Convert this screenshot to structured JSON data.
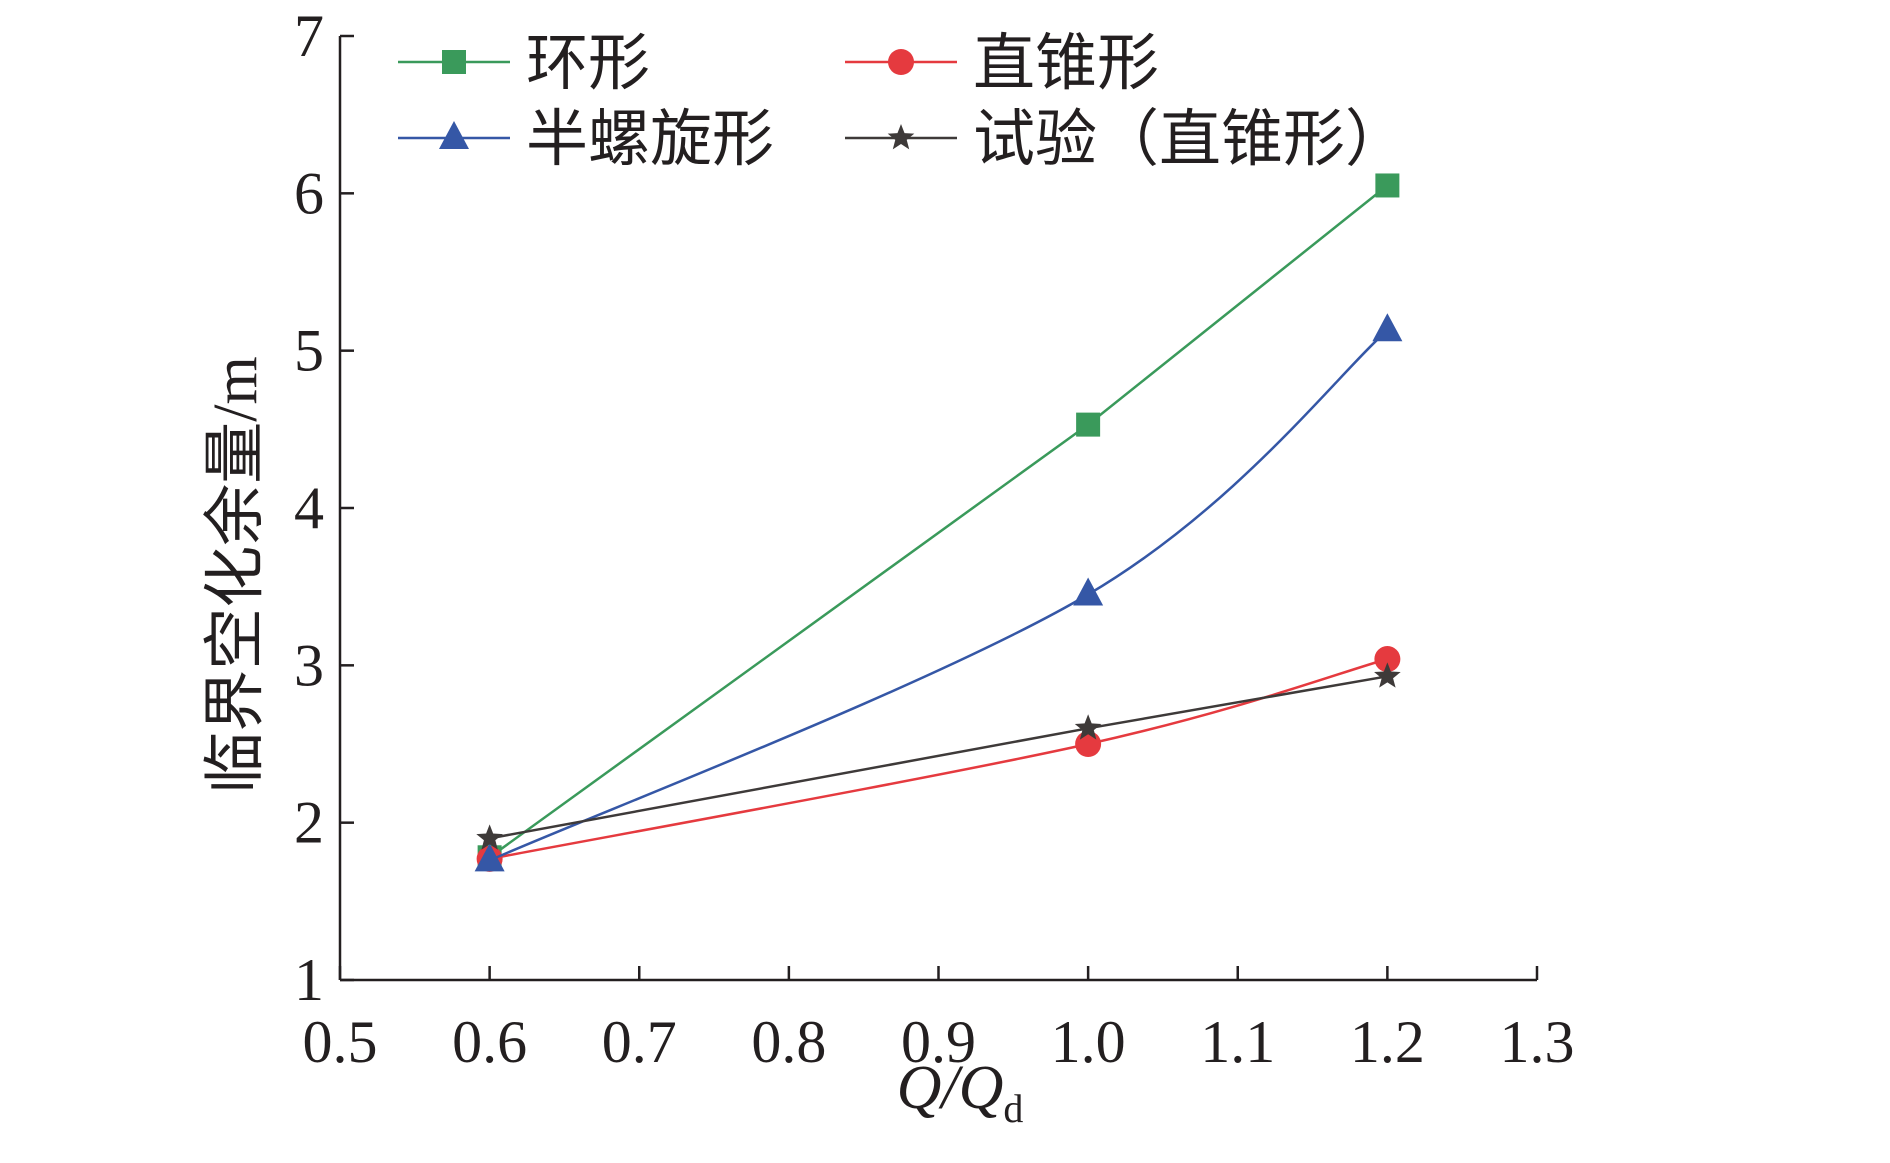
{
  "chart_data": {
    "type": "line",
    "title": "",
    "xlabel": {
      "main": "Q/Q",
      "sub": "d"
    },
    "ylabel": "临界空化余量/m",
    "xlim": [
      0.5,
      1.3
    ],
    "ylim": [
      1,
      7
    ],
    "xticks": [
      "0.5",
      "0.6",
      "0.7",
      "0.8",
      "0.9",
      "1.0",
      "1.1",
      "1.2",
      "1.3"
    ],
    "yticks": [
      "1",
      "2",
      "3",
      "4",
      "5",
      "6",
      "7"
    ],
    "grid": false,
    "legend_position": "top",
    "series": [
      {
        "name": "环形",
        "color": "#3a9a5b",
        "marker": "square",
        "smooth": false,
        "x": [
          0.6,
          1.0,
          1.2
        ],
        "y": [
          1.78,
          4.53,
          6.05
        ]
      },
      {
        "name": "直锥形",
        "color": "#e53a3f",
        "marker": "circle",
        "smooth": true,
        "x": [
          0.6,
          1.0,
          1.2
        ],
        "y": [
          1.77,
          2.5,
          3.04
        ]
      },
      {
        "name": "半螺旋形",
        "color": "#3557a6",
        "marker": "triangle",
        "smooth": true,
        "x": [
          0.6,
          1.0,
          1.2
        ],
        "y": [
          1.76,
          3.45,
          5.13
        ]
      },
      {
        "name": "试验（直锥形）",
        "color": "#3e3a39",
        "marker": "star",
        "smooth": false,
        "x": [
          0.6,
          1.0,
          1.2
        ],
        "y": [
          1.9,
          2.6,
          2.93
        ]
      }
    ]
  }
}
